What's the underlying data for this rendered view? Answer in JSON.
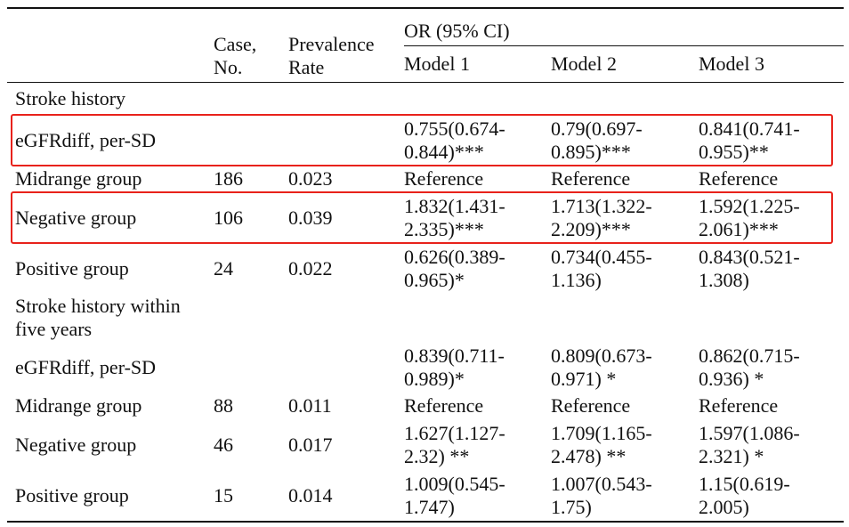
{
  "header": {
    "col_measure": "",
    "col_case_line1": "Case,",
    "col_case_line2": "No.",
    "col_prev_line1": "Prevalence",
    "col_prev_line2": "Rate",
    "col_or": "OR (95% CI)",
    "models": [
      "Model 1",
      "Model 2",
      "Model 3"
    ]
  },
  "rows": [
    {
      "type": "section",
      "label": "Stroke history"
    },
    {
      "type": "data",
      "label": "eGFRdiff, per-SD",
      "case": "",
      "prev": "",
      "m1": [
        "0.755(0.674-",
        "0.844)***"
      ],
      "m2": [
        "0.79(0.697-",
        "0.895)***"
      ],
      "m3": [
        "0.841(0.741-",
        "0.955)**"
      ]
    },
    {
      "type": "data",
      "label": "Midrange group",
      "case": "186",
      "prev": "0.023",
      "m1": [
        "Reference"
      ],
      "m2": [
        "Reference"
      ],
      "m3": [
        "Reference"
      ]
    },
    {
      "type": "data",
      "label": "Negative group",
      "case": "106",
      "prev": "0.039",
      "m1": [
        "1.832(1.431-",
        "2.335)***"
      ],
      "m2": [
        "1.713(1.322-",
        "2.209)***"
      ],
      "m3": [
        "1.592(1.225-",
        "2.061)***"
      ]
    },
    {
      "type": "data",
      "label": "Positive group",
      "case": "24",
      "prev": "0.022",
      "m1": [
        "0.626(0.389-",
        "0.965)*"
      ],
      "m2": [
        "0.734(0.455-",
        "1.136)"
      ],
      "m3": [
        "0.843(0.521-",
        "1.308)"
      ]
    },
    {
      "type": "section2",
      "label": [
        "Stroke history within",
        "five years"
      ]
    },
    {
      "type": "data",
      "label": "eGFRdiff, per-SD",
      "case": "",
      "prev": "",
      "m1": [
        "0.839(0.711-",
        "0.989)*"
      ],
      "m2": [
        "0.809(0.673-",
        "0.971) *"
      ],
      "m3": [
        "0.862(0.715-",
        "0.936) *"
      ]
    },
    {
      "type": "data",
      "label": "Midrange group",
      "case": "88",
      "prev": "0.011",
      "m1": [
        "Reference"
      ],
      "m2": [
        "Reference"
      ],
      "m3": [
        "Reference"
      ]
    },
    {
      "type": "data",
      "label": "Negative group",
      "case": "46",
      "prev": "0.017",
      "m1": [
        "1.627(1.127-",
        "2.32) **"
      ],
      "m2": [
        "1.709(1.165-",
        "2.478) **"
      ],
      "m3": [
        "1.597(1.086-",
        "2.321) *"
      ]
    },
    {
      "type": "data",
      "label": "Positive group",
      "case": "15",
      "prev": "0.014",
      "m1": [
        "1.009(0.545-",
        "1.747)"
      ],
      "m2": [
        "1.007(0.543-",
        "1.75)"
      ],
      "m3": [
        "1.15(0.619-",
        "2.005)"
      ]
    }
  ],
  "highlight_color": "#e8221b"
}
